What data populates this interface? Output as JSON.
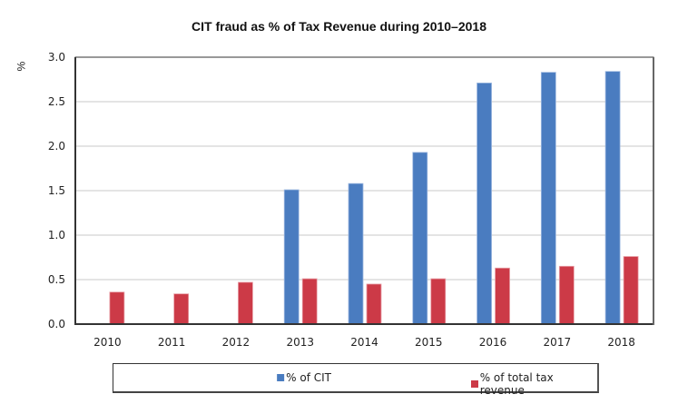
{
  "chart_data": {
    "type": "bar",
    "title": "CIT fraud as % of Tax Revenue during 2010–2018",
    "xlabel": "",
    "ylabel": "%",
    "ylim": [
      0,
      3.0
    ],
    "yticks": [
      "0.0",
      "0.5",
      "1.0",
      "1.5",
      "2.0",
      "2.5",
      "3.0"
    ],
    "ytick_values": [
      0,
      0.5,
      1.0,
      1.5,
      2.0,
      2.5,
      3.0
    ],
    "grid": true,
    "legend_position": "bottom",
    "categories": [
      "2010",
      "2011",
      "2012",
      "2013",
      "2014",
      "2015",
      "2016",
      "2017",
      "2018"
    ],
    "series": [
      {
        "name": "% of CIT",
        "color": "#4a7cc0",
        "values": [
          null,
          null,
          null,
          1.51,
          1.58,
          1.93,
          2.71,
          2.83,
          2.84
        ]
      },
      {
        "name": "% of total tax revenue",
        "color": "#cc3a47",
        "values": [
          0.36,
          0.34,
          0.47,
          0.51,
          0.45,
          0.51,
          0.63,
          0.65,
          0.76
        ]
      }
    ]
  }
}
